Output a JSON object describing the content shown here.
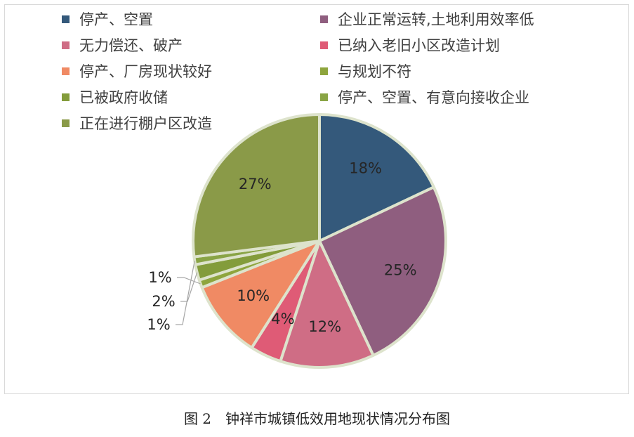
{
  "chart_data": {
    "type": "pie",
    "categories": [
      "停产、空置",
      "企业正常运转,土地利用效率低",
      "无力偿还、破产",
      "已纳入老旧小区改造计划",
      "停产、厂房现状较好",
      "与规划不符",
      "已被政府收储",
      "停产、空置、有意向接收企业",
      "正在进行棚户区改造"
    ],
    "values": [
      18,
      25,
      12,
      4,
      10,
      1,
      2,
      1,
      27
    ],
    "data_labels": [
      "18%",
      "25%",
      "12%",
      "4%",
      "10%",
      "1%",
      "2%",
      "1%",
      "27%"
    ],
    "colors": [
      "#34597b",
      "#8f5e7f",
      "#cf6d85",
      "#df5b76",
      "#f08a64",
      "#8ea53d",
      "#839c3b",
      "#89a445",
      "#8a9a48"
    ],
    "legend_placement": "top"
  },
  "caption": "图 2　钟祥市城镇低效用地现状情况分布图"
}
